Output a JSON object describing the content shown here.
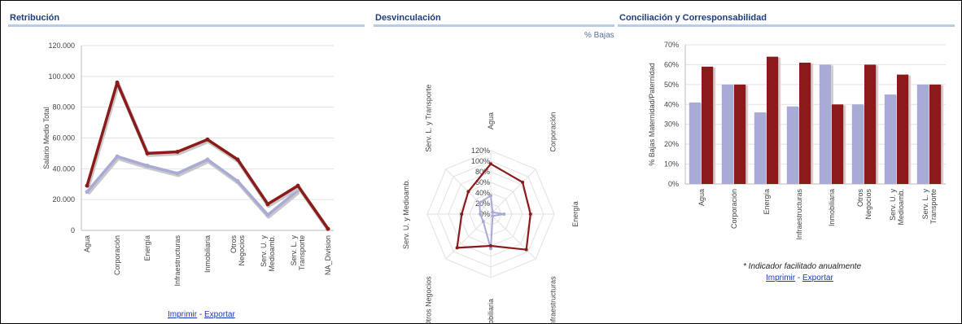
{
  "panels": {
    "retribucion": {
      "title": "Retribución",
      "links": {
        "print": "Imprimir",
        "sep": " - ",
        "export": "Exportar"
      }
    },
    "desvinculacion": {
      "title": "Desvinculación",
      "legend": "% Bajas"
    },
    "conciliacion": {
      "title": "Conciliación y Corresponsabilidad",
      "note": "* Indicador facilitado anualmente",
      "links": {
        "print": "Imprimir",
        "sep": " - ",
        "export": "Exportar"
      }
    }
  },
  "colors": {
    "dark_red": "#8b1a1a",
    "lavender": "#a9abd6",
    "grid": "#e2e2e2",
    "title_blue": "#1f3d7a"
  },
  "chart_data": [
    {
      "type": "line",
      "ylabel": "Salario Medio Total",
      "xlabel": "",
      "categories": [
        "Agua",
        "Corporación",
        "Energía",
        "Infraestructuras",
        "Inmobiliaria",
        "Otros Negocios",
        "Serv. U. y Medioamb.",
        "Serv. L. y Transporte",
        "NA_Division"
      ],
      "category_lines": [
        [
          "Agua"
        ],
        [
          "Corporación"
        ],
        [
          "Energía"
        ],
        [
          "Infraestructuras"
        ],
        [
          "Inmobiliaria"
        ],
        [
          "Otros",
          "Negocios"
        ],
        [
          "Serv. U. y",
          "Medioamb."
        ],
        [
          "Serv. L. y",
          "Transporte"
        ],
        [
          "NA_Division"
        ]
      ],
      "yticks": [
        "0",
        "20.000",
        "40.000",
        "60.000",
        "80.000",
        "100.000",
        "120.000"
      ],
      "ylim": [
        0,
        120000
      ],
      "series": [
        {
          "values": [
            29000,
            96000,
            50000,
            51000,
            59000,
            46000,
            17000,
            29000,
            1000
          ]
        },
        {
          "values": [
            25000,
            48000,
            42000,
            37000,
            46000,
            32000,
            10000,
            26000,
            null
          ]
        }
      ]
    },
    {
      "type": "radar",
      "axes": [
        "Agua",
        "Corporación",
        "Energía",
        "Infraestructuras",
        "Inmobiliaria",
        "Otros Negocios",
        "Serv. U. y Medioamb.",
        "Serv. L. y Transporte"
      ],
      "ticks": [
        "0%",
        "20%",
        "40%",
        "60%",
        "80%",
        "100%",
        "120%"
      ],
      "rlim": [
        0,
        120
      ],
      "series": [
        {
          "name": "% Bajas",
          "values": [
            95,
            85,
            75,
            95,
            60,
            90,
            55,
            60
          ]
        },
        {
          "values": [
            35,
            5,
            25,
            5,
            65,
            20,
            20,
            30
          ]
        }
      ]
    },
    {
      "type": "bar",
      "ylabel": "% Bajas Maternidad/Paternidad",
      "categories": [
        "Agua",
        "Corporación",
        "Energía",
        "Infraestructuras",
        "Inmobiliaria",
        "Otros Negocios",
        "Serv. U. y Medioamb.",
        "Serv. L. y Transporte"
      ],
      "category_lines": [
        [
          "Agua"
        ],
        [
          "Corporación"
        ],
        [
          "Energía"
        ],
        [
          "Infraestructuras"
        ],
        [
          "Inmobiliaria"
        ],
        [
          "Otros",
          "Negocios"
        ],
        [
          "Serv. U. y",
          "Medioamb."
        ],
        [
          "Serv. L. y",
          "Transporte"
        ]
      ],
      "yticks": [
        "0%",
        "10%",
        "20%",
        "30%",
        "40%",
        "50%",
        "60%",
        "70%"
      ],
      "ylim": [
        0,
        70
      ],
      "series": [
        {
          "values": [
            41,
            50,
            36,
            39,
            60,
            40,
            45,
            50
          ]
        },
        {
          "values": [
            59,
            50,
            64,
            61,
            40,
            60,
            55,
            50
          ]
        }
      ]
    }
  ]
}
